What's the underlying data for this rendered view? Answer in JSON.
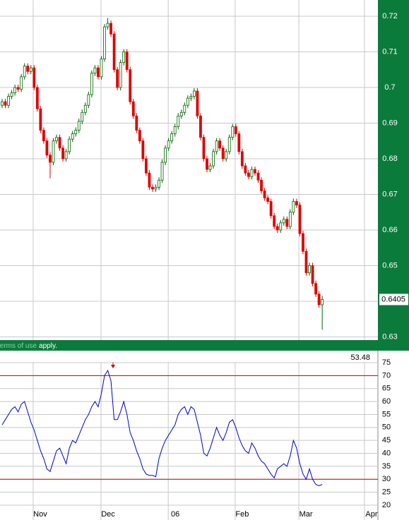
{
  "chart_data": [
    {
      "type": "candlestick",
      "open": [
        0.695,
        0.696,
        0.695,
        0.6975,
        0.6985,
        0.7,
        0.6995,
        0.703,
        0.706,
        0.7045,
        0.7055,
        0.7,
        0.694,
        0.688,
        0.685,
        0.681,
        0.679,
        0.685,
        0.686,
        0.683,
        0.68,
        0.682,
        0.6855,
        0.687,
        0.688,
        0.6905,
        0.693,
        0.695,
        0.698,
        0.704,
        0.7055,
        0.703,
        0.708,
        0.717,
        0.718,
        0.715,
        0.705,
        0.7,
        0.707,
        0.71,
        0.705,
        0.696,
        0.692,
        0.688,
        0.685,
        0.68,
        0.676,
        0.672,
        0.6715,
        0.672,
        0.674,
        0.679,
        0.683,
        0.685,
        0.687,
        0.689,
        0.692,
        0.693,
        0.695,
        0.697,
        0.6975,
        0.699,
        0.692,
        0.686,
        0.68,
        0.677,
        0.678,
        0.682,
        0.685,
        0.683,
        0.68,
        0.682,
        0.686,
        0.689,
        0.687,
        0.682,
        0.678,
        0.676,
        0.675,
        0.677,
        0.676,
        0.674,
        0.671,
        0.669,
        0.668,
        0.664,
        0.661,
        0.66,
        0.662,
        0.663,
        0.661,
        0.665,
        0.668,
        0.667,
        0.659,
        0.654,
        0.648,
        0.65,
        0.645,
        0.642,
        0.639
      ],
      "high": [
        0.6968,
        0.6968,
        0.6983,
        0.6993,
        0.7008,
        0.7008,
        0.7038,
        0.7068,
        0.7068,
        0.7063,
        0.7063,
        0.7008,
        0.6948,
        0.6888,
        0.6858,
        0.6818,
        0.6858,
        0.6868,
        0.6868,
        0.6838,
        0.6828,
        0.6863,
        0.6878,
        0.6888,
        0.6913,
        0.6938,
        0.6958,
        0.6988,
        0.7048,
        0.7063,
        0.7063,
        0.7088,
        0.7178,
        0.7195,
        0.7188,
        0.7158,
        0.7058,
        0.7078,
        0.7108,
        0.7108,
        0.7058,
        0.6968,
        0.6928,
        0.6888,
        0.6858,
        0.6808,
        0.6768,
        0.6728,
        0.6728,
        0.6748,
        0.6798,
        0.6838,
        0.6858,
        0.6878,
        0.6898,
        0.6928,
        0.6938,
        0.6958,
        0.6978,
        0.6983,
        0.6998,
        0.6998,
        0.6928,
        0.6868,
        0.6808,
        0.6788,
        0.6828,
        0.6858,
        0.6858,
        0.6838,
        0.6828,
        0.6868,
        0.6898,
        0.6898,
        0.6878,
        0.6828,
        0.6788,
        0.6768,
        0.6778,
        0.6778,
        0.6768,
        0.6748,
        0.6718,
        0.6698,
        0.6688,
        0.6648,
        0.6618,
        0.6628,
        0.6638,
        0.6638,
        0.6658,
        0.6688,
        0.6688,
        0.6678,
        0.6598,
        0.6548,
        0.6508,
        0.6508,
        0.6458,
        0.6428,
        0.6415
      ],
      "low": [
        0.6942,
        0.6942,
        0.6942,
        0.6967,
        0.6977,
        0.6987,
        0.6987,
        0.7022,
        0.7037,
        0.7037,
        0.6992,
        0.6932,
        0.6872,
        0.6842,
        0.6802,
        0.6745,
        0.6782,
        0.6842,
        0.6822,
        0.6792,
        0.6792,
        0.6812,
        0.6847,
        0.6862,
        0.6872,
        0.6897,
        0.6922,
        0.6942,
        0.6972,
        0.7032,
        0.7022,
        0.7022,
        0.7072,
        0.7162,
        0.7142,
        0.7042,
        0.6992,
        0.6992,
        0.7062,
        0.7042,
        0.6952,
        0.6912,
        0.6872,
        0.6842,
        0.6792,
        0.6752,
        0.6712,
        0.6707,
        0.6707,
        0.6712,
        0.6732,
        0.6782,
        0.6822,
        0.6842,
        0.6862,
        0.6882,
        0.6912,
        0.6922,
        0.6942,
        0.6962,
        0.6967,
        0.6912,
        0.6852,
        0.6792,
        0.6762,
        0.6762,
        0.6772,
        0.6812,
        0.6822,
        0.6792,
        0.6792,
        0.6812,
        0.6852,
        0.6862,
        0.6812,
        0.6772,
        0.6752,
        0.6742,
        0.6742,
        0.6752,
        0.6732,
        0.6702,
        0.6682,
        0.6672,
        0.6632,
        0.6602,
        0.6592,
        0.6592,
        0.6612,
        0.6602,
        0.6602,
        0.6642,
        0.6662,
        0.6582,
        0.6532,
        0.6472,
        0.6472,
        0.6442,
        0.6412,
        0.6382,
        0.632
      ],
      "close": [
        0.696,
        0.695,
        0.6975,
        0.6985,
        0.7,
        0.6995,
        0.703,
        0.706,
        0.7045,
        0.7055,
        0.7,
        0.694,
        0.688,
        0.685,
        0.681,
        0.679,
        0.685,
        0.686,
        0.683,
        0.68,
        0.682,
        0.6855,
        0.687,
        0.688,
        0.6905,
        0.693,
        0.695,
        0.698,
        0.704,
        0.7055,
        0.703,
        0.708,
        0.717,
        0.718,
        0.715,
        0.705,
        0.7,
        0.707,
        0.71,
        0.705,
        0.696,
        0.692,
        0.688,
        0.685,
        0.68,
        0.676,
        0.672,
        0.6715,
        0.672,
        0.674,
        0.679,
        0.683,
        0.685,
        0.687,
        0.689,
        0.692,
        0.693,
        0.695,
        0.697,
        0.6975,
        0.699,
        0.692,
        0.686,
        0.68,
        0.677,
        0.678,
        0.682,
        0.685,
        0.683,
        0.68,
        0.682,
        0.686,
        0.689,
        0.687,
        0.682,
        0.678,
        0.676,
        0.675,
        0.677,
        0.676,
        0.674,
        0.671,
        0.669,
        0.668,
        0.664,
        0.661,
        0.66,
        0.662,
        0.663,
        0.661,
        0.665,
        0.668,
        0.667,
        0.659,
        0.654,
        0.648,
        0.65,
        0.645,
        0.642,
        0.639,
        0.6405
      ],
      "up_color": "#006600",
      "down_color": "#e00000",
      "xlim": [
        -0.66,
        117.4
      ],
      "xticks": [
        {
          "value": 9.7,
          "label": "Nov"
        },
        {
          "value": 30.9,
          "label": "Dec"
        },
        {
          "value": 51.9,
          "label": "06"
        },
        {
          "value": 72.8,
          "label": "Feb"
        },
        {
          "value": 92.7,
          "label": "Mar"
        },
        {
          "value": 113.2,
          "label": "Apr"
        }
      ],
      "ylim": [
        0.6291,
        0.72455
      ],
      "yticks": [
        0.63,
        0.64,
        0.65,
        0.66,
        0.67,
        0.68,
        0.69,
        0.7,
        0.71,
        0.72
      ],
      "grid": true
    },
    {
      "type": "line",
      "values": [
        51,
        53,
        55,
        57,
        58,
        56,
        59,
        60,
        56,
        52,
        49,
        45,
        41,
        38,
        34,
        33,
        37,
        41,
        42,
        39,
        36,
        42,
        45,
        44,
        47,
        50,
        53,
        55,
        58,
        60,
        58,
        63,
        70,
        72,
        68,
        53,
        53,
        56,
        60,
        55,
        48,
        45,
        41,
        38,
        34,
        32,
        31.5,
        31.5,
        31,
        38,
        42,
        45,
        47,
        49,
        51,
        55,
        57,
        58,
        55,
        58,
        57,
        52,
        47,
        40,
        39,
        42,
        46,
        50,
        47,
        45,
        48,
        52,
        53,
        50,
        46,
        43,
        41,
        40,
        44,
        42,
        39,
        37,
        36,
        34,
        32,
        30.5,
        34,
        35,
        36,
        35,
        39,
        45,
        42,
        36,
        32,
        30,
        34,
        30,
        28,
        27.5,
        28
      ],
      "color": "#0000cc",
      "ylim": [
        14.28,
        79.63
      ],
      "yticks": [
        20,
        25,
        30,
        35,
        40,
        45,
        50,
        55,
        60,
        65,
        70,
        75
      ],
      "hlines": [
        70,
        30
      ],
      "hline_color": "#cc0000",
      "readout": 53.48,
      "grid": true
    }
  ],
  "footer": {
    "link": "terms of use",
    "text": "apply."
  }
}
